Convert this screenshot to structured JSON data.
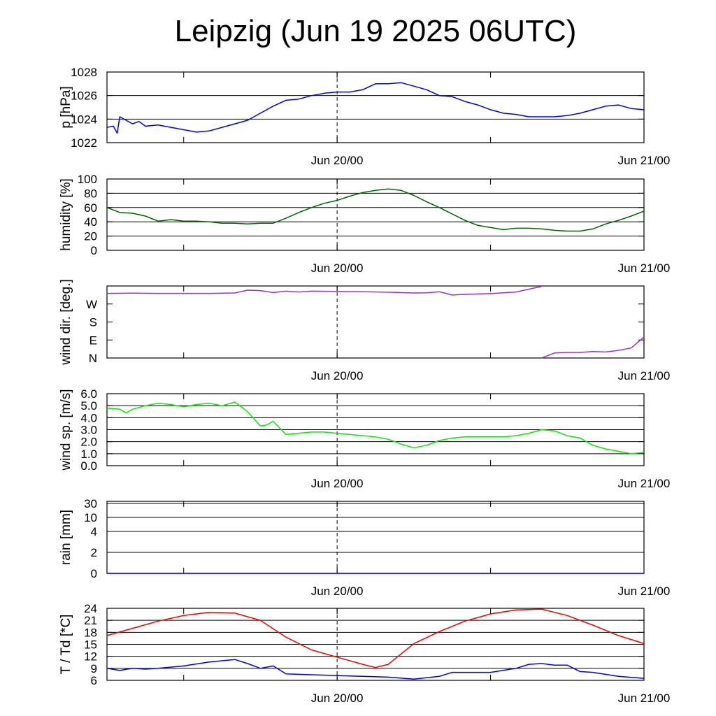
{
  "title": "Leipzig (Jun 19 2025 06UTC)",
  "x_axis": {
    "tick_labels": [
      "Jun 20/00",
      "Jun 21/00"
    ],
    "range_hours_from_jun19_06": [
      0,
      42
    ],
    "dashed_marker_at": "Jun 20/00"
  },
  "chart_data": [
    {
      "type": "line",
      "ylabel": "p [hPa]",
      "ylim": [
        1022,
        1028
      ],
      "yticks": [
        1022,
        1024,
        1026,
        1028
      ],
      "ytick_labels": [
        "1022",
        "1024",
        "1026",
        "1028"
      ],
      "grid": true,
      "series": [
        {
          "color": "#0000ee",
          "x": [
            0,
            0.5,
            0.8,
            1,
            1.5,
            2,
            2.5,
            3,
            4,
            5,
            6,
            7,
            8,
            9,
            10,
            11,
            12,
            13,
            14,
            15,
            16,
            17,
            18,
            19,
            20,
            21,
            22,
            23,
            24,
            25,
            26,
            27,
            28,
            29,
            30,
            31,
            32,
            33,
            34,
            35,
            36,
            37,
            38,
            39,
            40,
            41,
            42
          ],
          "y": [
            1023.3,
            1023.4,
            1022.8,
            1024.2,
            1023.9,
            1023.6,
            1023.8,
            1023.4,
            1023.5,
            1023.3,
            1023.1,
            1022.9,
            1023.0,
            1023.3,
            1023.6,
            1023.9,
            1024.5,
            1025.1,
            1025.6,
            1025.7,
            1026.0,
            1026.2,
            1026.3,
            1026.3,
            1026.5,
            1027.0,
            1027.0,
            1027.1,
            1026.8,
            1026.5,
            1026.0,
            1025.9,
            1025.5,
            1025.2,
            1024.8,
            1024.5,
            1024.4,
            1024.2,
            1024.2,
            1024.2,
            1024.3,
            1024.5,
            1024.8,
            1025.1,
            1025.2,
            1024.9,
            1024.8
          ]
        }
      ]
    },
    {
      "type": "line",
      "ylabel": "humidity [%]",
      "ylim": [
        0,
        100
      ],
      "yticks": [
        0,
        20,
        40,
        60,
        80,
        100
      ],
      "ytick_labels": [
        "0",
        "20",
        "40",
        "60",
        "80",
        "100"
      ],
      "grid": true,
      "series": [
        {
          "color": "#006400",
          "x": [
            0,
            1,
            2,
            3,
            4,
            5,
            6,
            7,
            8,
            9,
            10,
            11,
            12,
            13,
            14,
            15,
            16,
            17,
            18,
            19,
            20,
            21,
            22,
            23,
            24,
            25,
            26,
            27,
            28,
            29,
            30,
            31,
            32,
            33,
            34,
            35,
            36,
            37,
            38,
            39,
            40,
            41,
            42
          ],
          "y": [
            60,
            53,
            52,
            48,
            41,
            43,
            41,
            41,
            40,
            38,
            38,
            37,
            38,
            38,
            45,
            53,
            60,
            66,
            70,
            76,
            81,
            84,
            86,
            84,
            77,
            68,
            60,
            51,
            42,
            35,
            32,
            29,
            31,
            31,
            30,
            28,
            27,
            27,
            30,
            37,
            42,
            48,
            55
          ]
        }
      ]
    },
    {
      "type": "line",
      "ylabel": "wind dir. [deg.]",
      "ylim": [
        0,
        360
      ],
      "yticks": [
        0,
        90,
        180,
        270
      ],
      "ytick_labels": [
        "N",
        "E",
        "S",
        "W"
      ],
      "grid": false,
      "series": [
        {
          "color": "#9932cc",
          "segments": [
            {
              "x": [
                0,
                2,
                4,
                6,
                8,
                10,
                11,
                12,
                13,
                14,
                15,
                16,
                18,
                20,
                22,
                24,
                25,
                26,
                27,
                28,
                30,
                32,
                34
              ],
              "y": [
                323,
                324,
                323,
                323,
                323,
                325,
                339,
                337,
                327,
                334,
                330,
                334,
                333,
                331,
                329,
                325,
                326,
                331,
                315,
                318,
                322,
                330,
                358
              ]
            },
            {
              "x": [
                34,
                35,
                36,
                37,
                38,
                39,
                40,
                41,
                42
              ],
              "y": [
                0,
                25,
                28,
                28,
                32,
                30,
                38,
                50,
                105
              ]
            }
          ]
        }
      ]
    },
    {
      "type": "line",
      "ylabel": "wind sp. [m/s]",
      "ylim": [
        0,
        6
      ],
      "yticks": [
        0,
        1,
        2,
        3,
        4,
        5,
        6
      ],
      "ytick_labels": [
        "0.0",
        "1.0",
        "2.0",
        "3.0",
        "4.0",
        "5.0",
        "6.0"
      ],
      "grid": true,
      "series": [
        {
          "color": "#00ee00",
          "x": [
            0,
            1,
            1.5,
            2,
            3,
            4,
            5,
            6,
            7,
            8,
            9,
            10,
            11,
            11.5,
            12,
            12.5,
            13,
            14,
            15,
            16,
            17,
            18,
            19,
            20,
            21,
            22,
            23,
            24,
            25,
            26,
            27,
            28,
            29,
            30,
            31,
            32,
            33,
            34,
            35,
            36,
            37,
            38,
            39,
            40,
            41,
            42
          ],
          "y": [
            4.8,
            4.7,
            4.4,
            4.7,
            5.0,
            5.2,
            5.1,
            4.9,
            5.1,
            5.2,
            5.0,
            5.3,
            4.5,
            3.9,
            3.3,
            3.4,
            3.7,
            2.6,
            2.7,
            2.8,
            2.8,
            2.7,
            2.6,
            2.5,
            2.4,
            2.2,
            1.8,
            1.5,
            1.7,
            2.1,
            2.3,
            2.4,
            2.4,
            2.4,
            2.4,
            2.5,
            2.7,
            3.0,
            2.9,
            2.5,
            2.3,
            1.7,
            1.4,
            1.2,
            1.0,
            1.1
          ]
        }
      ]
    },
    {
      "type": "line",
      "ylabel": "rain [mm]",
      "yticks": [
        0,
        2,
        4,
        10,
        30
      ],
      "ytick_labels": [
        "0",
        "2",
        "4",
        "10",
        "30"
      ],
      "grid": true,
      "series": [
        {
          "color": "#0000ee",
          "x": [
            0,
            42
          ],
          "y": [
            0,
            0
          ]
        }
      ]
    },
    {
      "type": "line",
      "ylabel": "T / Td [*C]",
      "ylim": [
        6,
        24
      ],
      "yticks": [
        6,
        9,
        12,
        15,
        18,
        21,
        24
      ],
      "ytick_labels": [
        "6",
        "9",
        "12",
        "15",
        "18",
        "21",
        "24"
      ],
      "grid": true,
      "series": [
        {
          "color": "#ee0000",
          "x": [
            0,
            2,
            4,
            6,
            8,
            10,
            12,
            14,
            16,
            18,
            20,
            21,
            22,
            24,
            26,
            28,
            30,
            32,
            34,
            36,
            38,
            40,
            42
          ],
          "y": [
            17.2,
            19.0,
            20.8,
            22.2,
            23.0,
            22.8,
            21.0,
            16.8,
            13.6,
            11.8,
            10.0,
            9.2,
            10.0,
            15.2,
            18.2,
            20.8,
            22.6,
            23.6,
            23.8,
            22.2,
            19.8,
            17.2,
            15.2
          ]
        },
        {
          "color": "#0000ee",
          "x": [
            0,
            1,
            2,
            3,
            4,
            6,
            8,
            10,
            11,
            12,
            13,
            14,
            16,
            18,
            20,
            22,
            24,
            26,
            27,
            28,
            30,
            32,
            33,
            34,
            35,
            36,
            37,
            38,
            40,
            42
          ],
          "y": [
            9.0,
            8.5,
            9.0,
            8.8,
            9.0,
            9.6,
            10.6,
            11.2,
            10.2,
            9.0,
            9.6,
            7.6,
            7.4,
            7.2,
            7.0,
            6.8,
            6.3,
            7.0,
            8.0,
            8.0,
            8.0,
            9.0,
            10.0,
            10.2,
            9.8,
            9.8,
            8.2,
            8.0,
            7.0,
            6.5
          ]
        }
      ]
    }
  ]
}
